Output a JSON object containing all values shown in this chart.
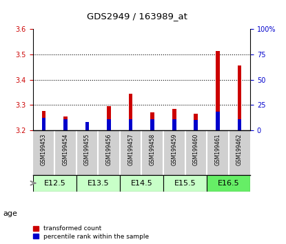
{
  "title": "GDS2949 / 163989_at",
  "samples": [
    "GSM199453",
    "GSM199454",
    "GSM199455",
    "GSM199456",
    "GSM199457",
    "GSM199458",
    "GSM199459",
    "GSM199460",
    "GSM199461",
    "GSM199462"
  ],
  "transformed_count": [
    3.275,
    3.255,
    3.21,
    3.295,
    3.345,
    3.27,
    3.285,
    3.265,
    3.515,
    3.455
  ],
  "percentile_rank": [
    12,
    11,
    8,
    11,
    11,
    11,
    11,
    10,
    18,
    11
  ],
  "ylim_left": [
    3.2,
    3.6
  ],
  "ylim_right": [
    0,
    100
  ],
  "yticks_left": [
    3.2,
    3.3,
    3.4,
    3.5,
    3.6
  ],
  "yticks_right": [
    0,
    25,
    50,
    75,
    100
  ],
  "ytick_labels_right": [
    "0",
    "25",
    "50",
    "75",
    "100%"
  ],
  "age_groups": [
    {
      "label": "E12.5",
      "samples": [
        0,
        1
      ],
      "color": "#c8ffc8"
    },
    {
      "label": "E13.5",
      "samples": [
        2,
        3
      ],
      "color": "#c8ffc8"
    },
    {
      "label": "E14.5",
      "samples": [
        4,
        5
      ],
      "color": "#c8ffc8"
    },
    {
      "label": "E15.5",
      "samples": [
        6,
        7
      ],
      "color": "#c8ffc8"
    },
    {
      "label": "E16.5",
      "samples": [
        8,
        9
      ],
      "color": "#66ff66"
    }
  ],
  "red_color": "#cc0000",
  "blue_color": "#0000cc",
  "legend_red": "transformed count",
  "legend_blue": "percentile rank within the sample",
  "left_yaxis_color": "#cc0000",
  "right_yaxis_color": "#0000cc",
  "age_label": "age",
  "background_color": "#ffffff",
  "plot_bg_color": "#ffffff",
  "sample_bg_color": "#d0d0d0",
  "grid_ticks": [
    3.3,
    3.4,
    3.5
  ],
  "bar_width": 0.18
}
